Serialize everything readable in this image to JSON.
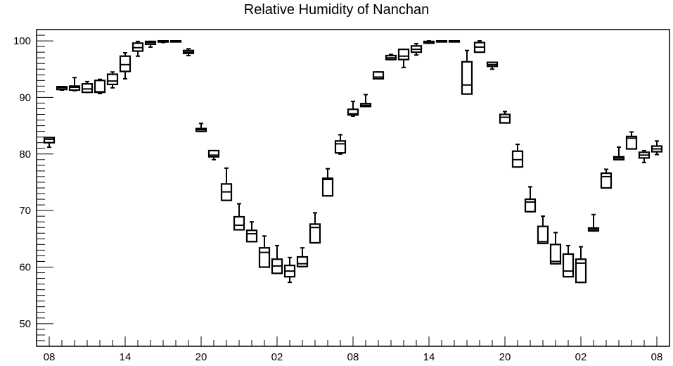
{
  "chart_data": {
    "type": "box",
    "title": "Relative Humidity of Nanchan",
    "xlabel": "",
    "ylabel": "",
    "ylim": [
      46,
      102
    ],
    "y_ticks": [
      50,
      60,
      70,
      80,
      90,
      100
    ],
    "x_tick_labels": [
      "08",
      "14",
      "20",
      "02",
      "08",
      "14",
      "20",
      "02",
      "08"
    ],
    "x_tick_hours": [
      0,
      6,
      12,
      18,
      24,
      30,
      36,
      42,
      48
    ],
    "xlim_hours": [
      -1,
      49
    ],
    "grid": false,
    "boxes": [
      {
        "hour": 0,
        "whisker_low": 81.2,
        "q1": 82.0,
        "median": 82.6,
        "q3": 82.9,
        "whisker_high": 82.9
      },
      {
        "hour": 1,
        "whisker_low": 91.3,
        "q1": 91.4,
        "median": 91.7,
        "q3": 91.9,
        "whisker_high": 91.9
      },
      {
        "hour": 2,
        "whisker_low": 91.2,
        "q1": 91.3,
        "median": 91.8,
        "q3": 92.0,
        "whisker_high": 93.5
      },
      {
        "hour": 3,
        "whisker_low": 90.9,
        "q1": 90.9,
        "median": 91.5,
        "q3": 92.4,
        "whisker_high": 92.8
      },
      {
        "hour": 4,
        "whisker_low": 90.7,
        "q1": 90.9,
        "median": 91.0,
        "q3": 93.0,
        "whisker_high": 93.2
      },
      {
        "hour": 5,
        "whisker_low": 91.7,
        "q1": 92.3,
        "median": 92.9,
        "q3": 94.1,
        "whisker_high": 94.5
      },
      {
        "hour": 6,
        "whisker_low": 93.3,
        "q1": 94.6,
        "median": 95.8,
        "q3": 97.3,
        "whisker_high": 97.9
      },
      {
        "hour": 7,
        "whisker_low": 97.3,
        "q1": 98.2,
        "median": 98.8,
        "q3": 99.6,
        "whisker_high": 99.9
      },
      {
        "hour": 8,
        "whisker_low": 98.9,
        "q1": 99.4,
        "median": 99.7,
        "q3": 99.9,
        "whisker_high": 99.9
      },
      {
        "hour": 9,
        "whisker_low": 99.7,
        "q1": 99.8,
        "median": 99.9,
        "q3": 100.0,
        "whisker_high": 100.0
      },
      {
        "hour": 10,
        "whisker_low": 100.0,
        "q1": 100.0,
        "median": 100.0,
        "q3": 100.0,
        "whisker_high": 100.0
      },
      {
        "hour": 11,
        "whisker_low": 97.4,
        "q1": 97.8,
        "median": 98.0,
        "q3": 98.3,
        "whisker_high": 98.6
      },
      {
        "hour": 12,
        "whisker_low": 84.0,
        "q1": 84.0,
        "median": 84.3,
        "q3": 84.5,
        "whisker_high": 85.4
      },
      {
        "hour": 13,
        "whisker_low": 79.0,
        "q1": 79.5,
        "median": 79.8,
        "q3": 80.6,
        "whisker_high": 80.6
      },
      {
        "hour": 14,
        "whisker_low": 71.8,
        "q1": 71.8,
        "median": 73.3,
        "q3": 74.7,
        "whisker_high": 77.5
      },
      {
        "hour": 15,
        "whisker_low": 66.6,
        "q1": 66.6,
        "median": 67.4,
        "q3": 68.9,
        "whisker_high": 71.2
      },
      {
        "hour": 16,
        "whisker_low": 64.5,
        "q1": 64.5,
        "median": 65.9,
        "q3": 66.5,
        "whisker_high": 68.0
      },
      {
        "hour": 17,
        "whisker_low": 60.0,
        "q1": 60.0,
        "median": 62.6,
        "q3": 63.4,
        "whisker_high": 65.5
      },
      {
        "hour": 18,
        "whisker_low": 58.9,
        "q1": 58.9,
        "median": 60.2,
        "q3": 61.4,
        "whisker_high": 63.8
      },
      {
        "hour": 19,
        "whisker_low": 57.3,
        "q1": 58.3,
        "median": 59.3,
        "q3": 60.3,
        "whisker_high": 61.7
      },
      {
        "hour": 20,
        "whisker_low": 60.1,
        "q1": 60.1,
        "median": 60.6,
        "q3": 61.8,
        "whisker_high": 63.4
      },
      {
        "hour": 21,
        "whisker_low": 64.3,
        "q1": 64.3,
        "median": 67.0,
        "q3": 67.6,
        "whisker_high": 69.6
      },
      {
        "hour": 22,
        "whisker_low": 72.6,
        "q1": 72.6,
        "median": 75.5,
        "q3": 75.7,
        "whisker_high": 77.4
      },
      {
        "hour": 23,
        "whisker_low": 80.0,
        "q1": 80.2,
        "median": 81.8,
        "q3": 82.3,
        "whisker_high": 83.4
      },
      {
        "hour": 24,
        "whisker_low": 86.7,
        "q1": 86.9,
        "median": 87.1,
        "q3": 87.9,
        "whisker_high": 89.3
      },
      {
        "hour": 25,
        "whisker_low": 88.4,
        "q1": 88.4,
        "median": 88.6,
        "q3": 88.9,
        "whisker_high": 90.5
      },
      {
        "hour": 26,
        "whisker_low": 93.3,
        "q1": 93.3,
        "median": 93.6,
        "q3": 94.5,
        "whisker_high": 94.5
      },
      {
        "hour": 27,
        "whisker_low": 96.7,
        "q1": 96.7,
        "median": 97.0,
        "q3": 97.4,
        "whisker_high": 97.6
      },
      {
        "hour": 28,
        "whisker_low": 95.3,
        "q1": 96.7,
        "median": 97.3,
        "q3": 98.5,
        "whisker_high": 98.5
      },
      {
        "hour": 29,
        "whisker_low": 97.5,
        "q1": 98.0,
        "median": 98.5,
        "q3": 99.1,
        "whisker_high": 99.5
      },
      {
        "hour": 30,
        "whisker_low": 99.6,
        "q1": 99.6,
        "median": 99.8,
        "q3": 99.9,
        "whisker_high": 100.0
      },
      {
        "hour": 31,
        "whisker_low": 100.0,
        "q1": 100.0,
        "median": 100.0,
        "q3": 100.0,
        "whisker_high": 100.0
      },
      {
        "hour": 32,
        "whisker_low": 100.0,
        "q1": 100.0,
        "median": 100.0,
        "q3": 100.0,
        "whisker_high": 100.0
      },
      {
        "hour": 33,
        "whisker_low": 90.6,
        "q1": 90.6,
        "median": 92.2,
        "q3": 96.3,
        "whisker_high": 98.3
      },
      {
        "hour": 34,
        "whisker_low": 98.0,
        "q1": 98.0,
        "median": 98.9,
        "q3": 99.7,
        "whisker_high": 100.0
      },
      {
        "hour": 35,
        "whisker_low": 95.0,
        "q1": 95.5,
        "median": 95.8,
        "q3": 96.2,
        "whisker_high": 96.2
      },
      {
        "hour": 36,
        "whisker_low": 85.5,
        "q1": 85.5,
        "median": 86.5,
        "q3": 87.0,
        "whisker_high": 87.5
      },
      {
        "hour": 37,
        "whisker_low": 77.7,
        "q1": 77.7,
        "median": 79.0,
        "q3": 80.5,
        "whisker_high": 81.7
      },
      {
        "hour": 38,
        "whisker_low": 69.8,
        "q1": 69.8,
        "median": 71.5,
        "q3": 72.0,
        "whisker_high": 74.2
      },
      {
        "hour": 39,
        "whisker_low": 64.2,
        "q1": 64.2,
        "median": 64.5,
        "q3": 67.2,
        "whisker_high": 69.0
      },
      {
        "hour": 40,
        "whisker_low": 60.6,
        "q1": 60.6,
        "median": 61.0,
        "q3": 64.0,
        "whisker_high": 66.1
      },
      {
        "hour": 41,
        "whisker_low": 58.3,
        "q1": 58.3,
        "median": 59.3,
        "q3": 62.3,
        "whisker_high": 63.8
      },
      {
        "hour": 42,
        "whisker_low": 57.3,
        "q1": 57.3,
        "median": 60.7,
        "q3": 61.4,
        "whisker_high": 63.6
      },
      {
        "hour": 43,
        "whisker_low": 66.4,
        "q1": 66.4,
        "median": 66.7,
        "q3": 66.9,
        "whisker_high": 69.3
      },
      {
        "hour": 44,
        "whisker_low": 74.0,
        "q1": 74.0,
        "median": 76.0,
        "q3": 76.6,
        "whisker_high": 77.3
      },
      {
        "hour": 45,
        "whisker_low": 79.0,
        "q1": 79.0,
        "median": 79.3,
        "q3": 79.5,
        "whisker_high": 81.2
      },
      {
        "hour": 46,
        "whisker_low": 80.9,
        "q1": 80.9,
        "median": 82.8,
        "q3": 83.1,
        "whisker_high": 83.9
      },
      {
        "hour": 47,
        "whisker_low": 78.5,
        "q1": 79.3,
        "median": 79.8,
        "q3": 80.3,
        "whisker_high": 80.6
      },
      {
        "hour": 48,
        "whisker_low": 79.9,
        "q1": 80.4,
        "median": 80.9,
        "q3": 81.4,
        "whisker_high": 82.3
      }
    ]
  }
}
